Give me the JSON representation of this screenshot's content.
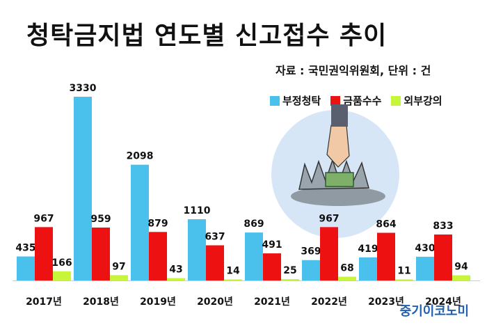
{
  "title": "청탁금지법 연도별 신고접수 추이",
  "source_note": "자료 : 국민권익위원회, 단위 : 건",
  "watermark": "중기이코노미",
  "colors": {
    "청탁": "#49c1ec",
    "금품": "#ee1111",
    "외부": "#c7f53a"
  },
  "chart_data": {
    "type": "bar",
    "categories": [
      "2017년",
      "2018년",
      "2019년",
      "2020년",
      "2021년",
      "2022년",
      "2023년",
      "2024년"
    ],
    "series": [
      {
        "name": "부정청탁",
        "color": "#49c1ec",
        "values": [
          435,
          3330,
          2098,
          1110,
          869,
          369,
          419,
          430
        ]
      },
      {
        "name": "금품수수",
        "color": "#ee1111",
        "values": [
          967,
          959,
          879,
          637,
          491,
          967,
          864,
          833
        ]
      },
      {
        "name": "외부강의",
        "color": "#c7f53a",
        "values": [
          166,
          97,
          43,
          14,
          25,
          68,
          11,
          94
        ]
      }
    ],
    "ylim": [
      0,
      3330
    ],
    "grid": false,
    "legend_position": "top-right"
  }
}
